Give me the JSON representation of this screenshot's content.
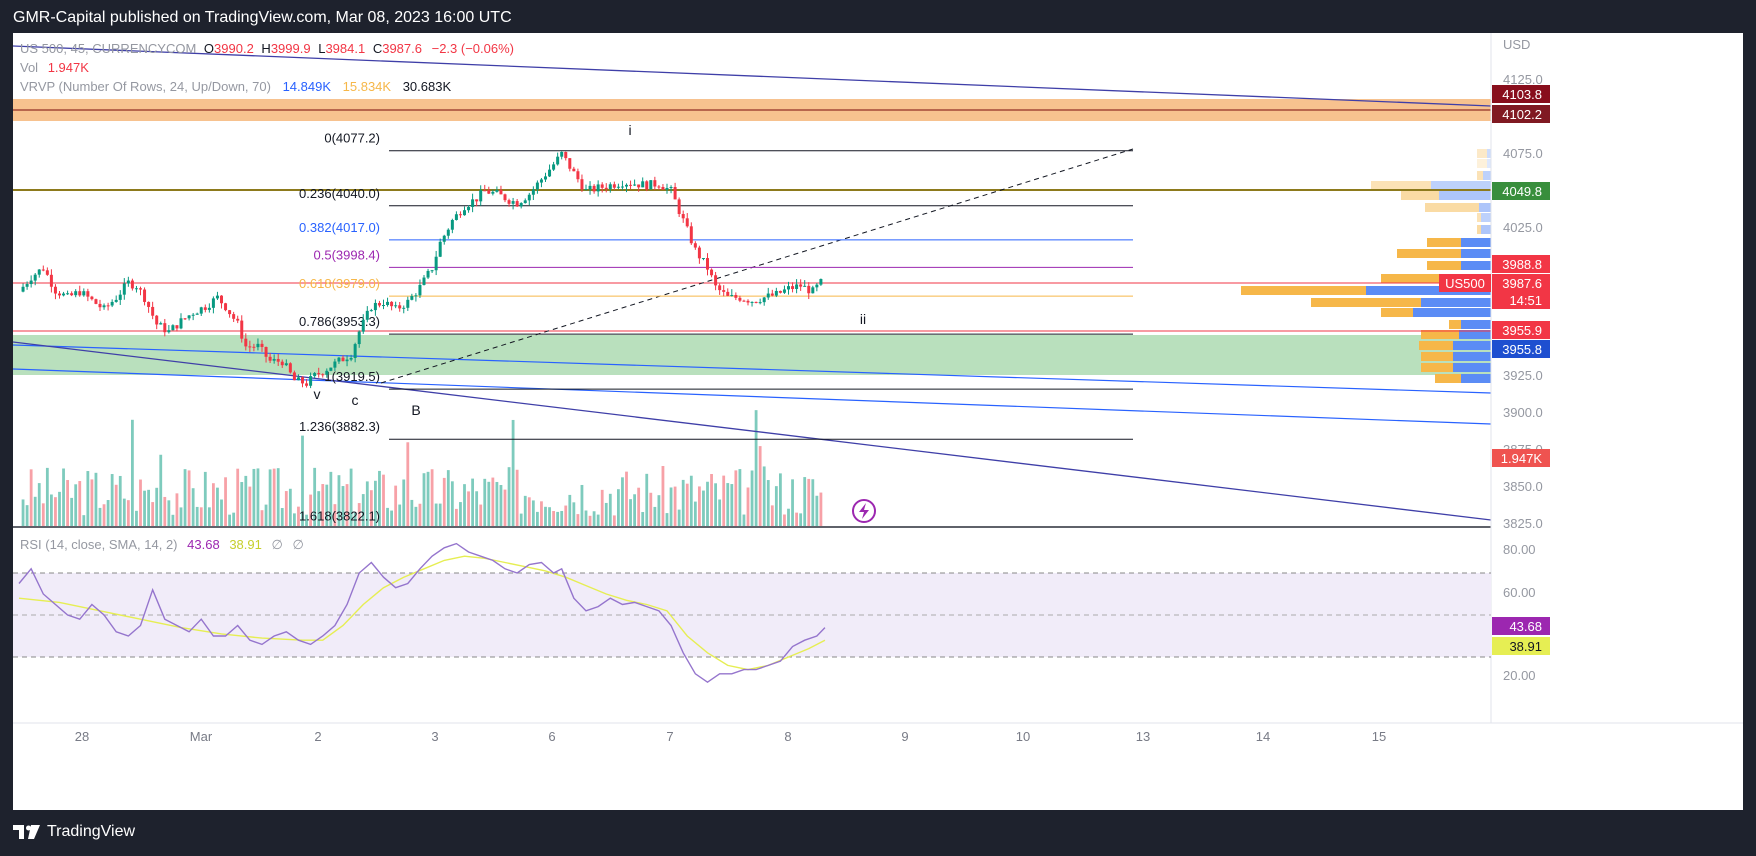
{
  "header": {
    "published": "GMR-Capital published on TradingView.com, Mar 08, 2023 16:00 UTC"
  },
  "legend": {
    "symbol": "US 500, 45, CURRENCYCOM",
    "o_label": "O",
    "o": "3990.2",
    "h_label": "H",
    "h": "3999.9",
    "l_label": "L",
    "l": "3984.1",
    "c_label": "C",
    "c": "3987.6",
    "change": "−2.3 (−0.06%)",
    "vol_label": "Vol",
    "vol": "1.947K",
    "vrvp_label": "VRVP (Number Of Rows, 24, Up/Down, 70)",
    "vrvp_up": "14.849K",
    "vrvp_down": "15.834K",
    "vrvp_total": "30.683K",
    "rsi_label": "RSI (14, close, SMA, 14, 2)",
    "rsi_value": "43.68",
    "rsi_sma": "38.91",
    "rsi_extra1": "∅",
    "rsi_extra2": "∅"
  },
  "currency": "USD",
  "price_axis": {
    "ticks": [
      "4125.0",
      "4075.0",
      "4025.0",
      "3925.0",
      "3900.0",
      "3875.0",
      "3850.0",
      "3825.0"
    ],
    "tags": [
      {
        "label": "4103.8",
        "color": "#880e1c",
        "text_color": "#ffffff"
      },
      {
        "label": "4102.2",
        "color": "#801922",
        "text_color": "#ffffff"
      },
      {
        "label": "4049.8",
        "color": "#388e3c",
        "text_color": "#ffffff"
      },
      {
        "label": "3988.8",
        "color": "#f23645",
        "text_color": "#ffffff"
      },
      {
        "label": "3987.6",
        "color": "#f23645",
        "text_color": "#ffffff"
      },
      {
        "label": "14:51",
        "color": "#f23645",
        "text_color": "#ffffff"
      },
      {
        "label": "3955.9",
        "color": "#f23645",
        "text_color": "#ffffff"
      },
      {
        "label": "3955.8",
        "color": "#1e4fd0",
        "text_color": "#ffffff"
      },
      {
        "label": "1.947K",
        "color": "#ef5350",
        "text_color": "#ffffff"
      }
    ],
    "symbol_tag": "US500"
  },
  "rsi_axis": {
    "ticks": [
      "80.00",
      "60.00",
      "20.00"
    ],
    "tags": [
      {
        "label": "43.68",
        "color": "#9c27b0"
      },
      {
        "label": "38.91",
        "color": "#e6ee53"
      }
    ]
  },
  "time_axis": {
    "labels": [
      "28",
      "Mar",
      "2",
      "3",
      "6",
      "7",
      "8",
      "9",
      "10",
      "13",
      "14",
      "15"
    ]
  },
  "fib": [
    {
      "label": "0(4077.2)",
      "price": 4077.2,
      "color": "#131722"
    },
    {
      "label": "0.236(4040.0)",
      "price": 4040.0,
      "color": "#131722"
    },
    {
      "label": "0.382(4017.0)",
      "price": 4017.0,
      "color": "#2962ff"
    },
    {
      "label": "0.5(3998.4)",
      "price": 3998.4,
      "color": "#9c27b0"
    },
    {
      "label": "0.618(3979.0)",
      "price": 3979.0,
      "color": "#f6b749"
    },
    {
      "label": "0.786(3953.3)",
      "price": 3953.3,
      "color": "#131722"
    },
    {
      "label": "1(3919.5)",
      "price": 3919.5,
      "color": "#131722"
    },
    {
      "label": "1.236(3882.3)",
      "price": 3882.3,
      "color": "#131722"
    },
    {
      "label": "1.618(3822.1)",
      "price": 3822.1,
      "color": "#131722"
    }
  ],
  "wave_labels": [
    "i",
    "ii",
    "v",
    "c",
    "B"
  ],
  "chart_data": [
    {
      "type": "candlestick",
      "title": "US 500, 45, CURRENCYCOM",
      "x_categories": [
        "28",
        "Mar",
        "2",
        "3",
        "6",
        "7",
        "8"
      ],
      "ylim": [
        3815,
        4135
      ],
      "last": {
        "open": 3990.2,
        "high": 3999.9,
        "low": 3984.1,
        "close": 3987.6
      },
      "path": [
        [
          0,
          3982
        ],
        [
          3,
          3992
        ],
        [
          6,
          3998
        ],
        [
          9,
          3983
        ],
        [
          12,
          3978
        ],
        [
          15,
          3982
        ],
        [
          18,
          3976
        ],
        [
          21,
          3970
        ],
        [
          24,
          3978
        ],
        [
          27,
          3988
        ],
        [
          29,
          3986
        ],
        [
          31,
          3978
        ],
        [
          34,
          3960
        ],
        [
          37,
          3955
        ],
        [
          40,
          3962
        ],
        [
          43,
          3968
        ],
        [
          46,
          3972
        ],
        [
          49,
          3978
        ],
        [
          51,
          3972
        ],
        [
          54,
          3960
        ],
        [
          56,
          3945
        ],
        [
          59,
          3945
        ],
        [
          62,
          3935
        ],
        [
          65,
          3935
        ],
        [
          68,
          3922
        ],
        [
          71,
          3920
        ],
        [
          73,
          3925
        ],
        [
          76,
          3930
        ],
        [
          79,
          3935
        ],
        [
          82,
          3940
        ],
        [
          84,
          3955
        ],
        [
          87,
          3972
        ],
        [
          90,
          3975
        ],
        [
          93,
          3970
        ],
        [
          96,
          3975
        ],
        [
          99,
          3985
        ],
        [
          102,
          3998
        ],
        [
          104,
          4015
        ],
        [
          107,
          4030
        ],
        [
          110,
          4040
        ],
        [
          113,
          4045
        ],
        [
          115,
          4050
        ],
        [
          118,
          4048
        ],
        [
          121,
          4044
        ],
        [
          123,
          4042
        ],
        [
          126,
          4048
        ],
        [
          129,
          4058
        ],
        [
          132,
          4068
        ],
        [
          134,
          4075
        ],
        [
          137,
          4062
        ],
        [
          140,
          4050
        ],
        [
          143,
          4052
        ],
        [
          146,
          4054
        ],
        [
          149,
          4056
        ],
        [
          152,
          4055
        ],
        [
          155,
          4054
        ],
        [
          158,
          4055
        ],
        [
          161,
          4050
        ],
        [
          164,
          4030
        ],
        [
          167,
          4010
        ],
        [
          170,
          3998
        ],
        [
          172,
          3985
        ],
        [
          175,
          3978
        ],
        [
          178,
          3978
        ],
        [
          181,
          3976
        ],
        [
          184,
          3978
        ],
        [
          187,
          3980
        ],
        [
          190,
          3984
        ],
        [
          193,
          3986
        ],
        [
          196,
          3982
        ],
        [
          198,
          3988
        ]
      ]
    },
    {
      "type": "bar",
      "title": "Vol",
      "last_value": "1.947K"
    },
    {
      "type": "line",
      "title": "RSI (14, close, SMA, 14, 2)",
      "ylim": [
        10,
        90
      ],
      "bands": [
        30,
        50,
        70
      ],
      "series": [
        {
          "name": "RSI",
          "color": "#9575cd",
          "values": [
            [
              0,
              65
            ],
            [
              3,
              72
            ],
            [
              6,
              60
            ],
            [
              9,
              55
            ],
            [
              12,
              50
            ],
            [
              15,
              48
            ],
            [
              18,
              55
            ],
            [
              21,
              50
            ],
            [
              24,
              42
            ],
            [
              27,
              40
            ],
            [
              30,
              45
            ],
            [
              33,
              62
            ],
            [
              36,
              48
            ],
            [
              39,
              45
            ],
            [
              42,
              42
            ],
            [
              45,
              48
            ],
            [
              48,
              40
            ],
            [
              51,
              40
            ],
            [
              54,
              45
            ],
            [
              57,
              38
            ],
            [
              60,
              36
            ],
            [
              63,
              40
            ],
            [
              66,
              42
            ],
            [
              69,
              38
            ],
            [
              72,
              36
            ],
            [
              75,
              40
            ],
            [
              78,
              45
            ],
            [
              81,
              55
            ],
            [
              84,
              70
            ],
            [
              87,
              75
            ],
            [
              90,
              68
            ],
            [
              93,
              63
            ],
            [
              96,
              65
            ],
            [
              99,
              72
            ],
            [
              102,
              78
            ],
            [
              105,
              82
            ],
            [
              108,
              84
            ],
            [
              111,
              80
            ],
            [
              114,
              78
            ],
            [
              117,
              76
            ],
            [
              120,
              72
            ],
            [
              123,
              70
            ],
            [
              126,
              74
            ],
            [
              129,
              75
            ],
            [
              132,
              70
            ],
            [
              134,
              72
            ],
            [
              137,
              58
            ],
            [
              140,
              52
            ],
            [
              143,
              54
            ],
            [
              146,
              58
            ],
            [
              149,
              55
            ],
            [
              152,
              56
            ],
            [
              155,
              54
            ],
            [
              158,
              52
            ],
            [
              161,
              45
            ],
            [
              164,
              32
            ],
            [
              167,
              22
            ],
            [
              170,
              18
            ],
            [
              173,
              22
            ],
            [
              176,
              22
            ],
            [
              179,
              24
            ],
            [
              182,
              24
            ],
            [
              185,
              26
            ],
            [
              188,
              28
            ],
            [
              191,
              35
            ],
            [
              194,
              38
            ],
            [
              197,
              40
            ],
            [
              199,
              44
            ]
          ]
        },
        {
          "name": "SMA",
          "color": "#e6ee53",
          "values": [
            [
              0,
              58
            ],
            [
              10,
              56
            ],
            [
              20,
              52
            ],
            [
              30,
              48
            ],
            [
              40,
              44
            ],
            [
              50,
              41
            ],
            [
              60,
              39
            ],
            [
              70,
              38
            ],
            [
              75,
              38
            ],
            [
              80,
              45
            ],
            [
              85,
              55
            ],
            [
              90,
              63
            ],
            [
              95,
              68
            ],
            [
              100,
              72
            ],
            [
              105,
              76
            ],
            [
              110,
              78
            ],
            [
              115,
              77
            ],
            [
              120,
              75
            ],
            [
              125,
              73
            ],
            [
              130,
              71
            ],
            [
              135,
              68
            ],
            [
              140,
              64
            ],
            [
              145,
              60
            ],
            [
              150,
              57
            ],
            [
              155,
              55
            ],
            [
              160,
              52
            ],
            [
              165,
              40
            ],
            [
              170,
              32
            ],
            [
              175,
              26
            ],
            [
              180,
              24
            ],
            [
              185,
              26
            ],
            [
              190,
              30
            ],
            [
              195,
              34
            ],
            [
              199,
              38
            ]
          ]
        }
      ]
    }
  ]
}
